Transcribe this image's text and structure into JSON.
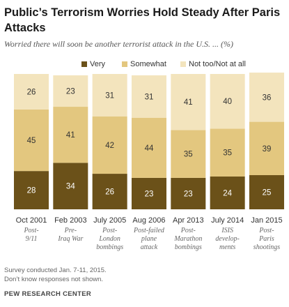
{
  "title": "Public’s Terrorism Worries Hold Steady After Paris Attacks",
  "subtitle": "Worried there will soon be another terrorist attack in the U.S. ... (%)",
  "notes": [
    "Survey conducted Jan. 7-11, 2015.",
    "Don’t know responses not shown."
  ],
  "source": "PEW RESEARCH CENTER",
  "chart_data": {
    "type": "bar",
    "stacked": true,
    "orientation": "vertical",
    "categories": [
      "Oct 2001",
      "Feb 2003",
      "July 2005",
      "Aug 2006",
      "Apr 2013",
      "July 2014",
      "Jan 2015"
    ],
    "category_notes": [
      "Post-\n9/11",
      "Pre-\nIraq War",
      "Post-\nLondon\nbombings",
      "Post-failed\nplane\nattack",
      "Post-\nMarathon\nbombings",
      "ISIS\ndevelop-\nments",
      "Post-\nParis\nshootings"
    ],
    "series": [
      {
        "name": "Very",
        "values": [
          28,
          34,
          26,
          23,
          23,
          24,
          25
        ],
        "color": "#6b5119"
      },
      {
        "name": "Somewhat",
        "values": [
          45,
          41,
          42,
          44,
          35,
          35,
          39
        ],
        "color": "#e3c77f"
      },
      {
        "name": "Not too/Not at all",
        "values": [
          26,
          23,
          31,
          31,
          41,
          40,
          36
        ],
        "color": "#f3e4bd"
      }
    ],
    "label_colors": [
      "#ffffff",
      "#333333",
      "#333333"
    ],
    "xlabel": "",
    "ylabel": "",
    "ylim": [
      0,
      100
    ],
    "grid": false,
    "legend": "top"
  }
}
